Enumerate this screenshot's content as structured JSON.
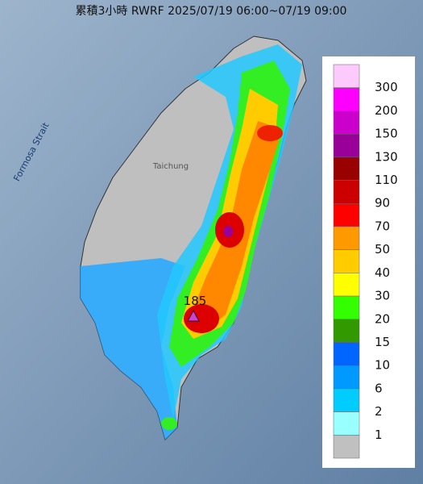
{
  "title": "累積3小時 RWRF 2025/07/19 06:00~07/19 09:00",
  "map": {
    "strait_label": "Formosa Strait",
    "city_label": "Taichung",
    "max_label": "185"
  },
  "legend": {
    "labels": [
      "300",
      "200",
      "150",
      "130",
      "110",
      "90",
      "70",
      "50",
      "40",
      "30",
      "20",
      "15",
      "10",
      "6",
      "2",
      "1"
    ],
    "colors": [
      "#fccafc",
      "#fd00fd",
      "#cc00cc",
      "#990099",
      "#990000",
      "#cc0000",
      "#ff0000",
      "#ff9900",
      "#ffcc00",
      "#ffff00",
      "#33ff00",
      "#339900",
      "#0066ff",
      "#0099ff",
      "#00ccff",
      "#99ffff",
      "#c0c0c0"
    ]
  }
}
